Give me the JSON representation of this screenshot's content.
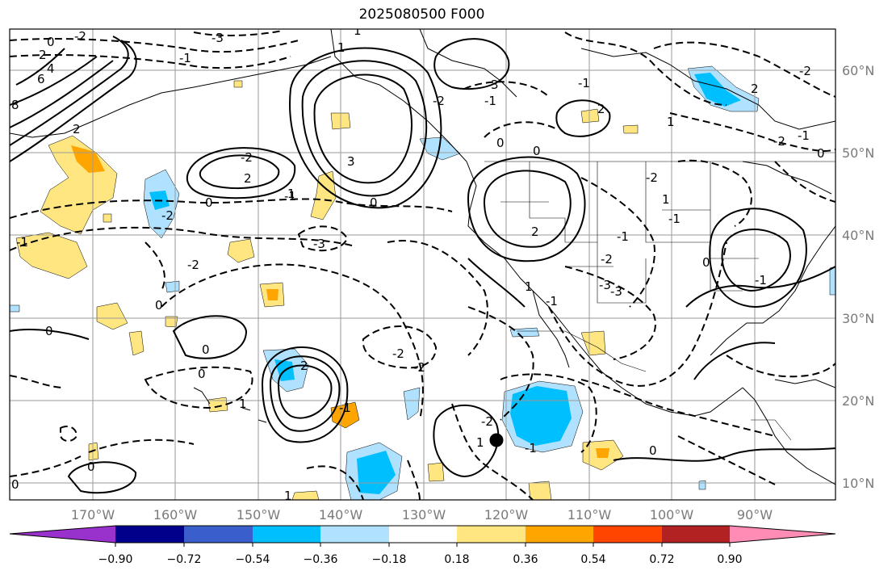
{
  "title": "2025080500 F000",
  "map": {
    "lat_labels": [
      "60°N",
      "50°N",
      "40°N",
      "30°N",
      "20°N",
      "10°N"
    ],
    "lon_labels": [
      "170°W",
      "160°W",
      "150°W",
      "140°W",
      "130°W",
      "120°W",
      "110°W",
      "100°W",
      "90°W"
    ],
    "contour_labels": [
      "0",
      "2",
      "4",
      "6",
      "8",
      "-2",
      "-3",
      "2",
      "1",
      "-1",
      "-2",
      "3",
      "2",
      "-1",
      "-2",
      "1",
      "2",
      "3",
      "-2",
      "-1",
      "0",
      "0",
      "-3",
      "1",
      "0",
      "-1",
      "-2",
      "-3",
      "-2",
      "2",
      "-1",
      "-2",
      "1",
      "-3",
      "-1",
      "2",
      "-1",
      "0",
      "0",
      "-2",
      "0",
      "0",
      "1",
      "-2",
      "1",
      "-1",
      "-2",
      "-1",
      "2",
      "1",
      "0",
      "-2",
      "-2",
      "0",
      "-1",
      "1",
      "-1",
      "0",
      "0",
      "0",
      "-1",
      "1",
      "0"
    ],
    "marker": "storm-center-marker",
    "grid": true
  },
  "colorbar": {
    "ticks": [
      "−0.90",
      "−0.72",
      "−0.54",
      "−0.36",
      "−0.18",
      "0.18",
      "0.36",
      "0.54",
      "0.72",
      "0.90"
    ],
    "colors": [
      "#9932CC",
      "#00008B",
      "#3A5FCD",
      "#00BFFF",
      "#B0E2FF",
      "#FFFFFF",
      "#FFE680",
      "#FFA500",
      "#FF4500",
      "#B22222",
      "#FF8CB4"
    ]
  }
}
